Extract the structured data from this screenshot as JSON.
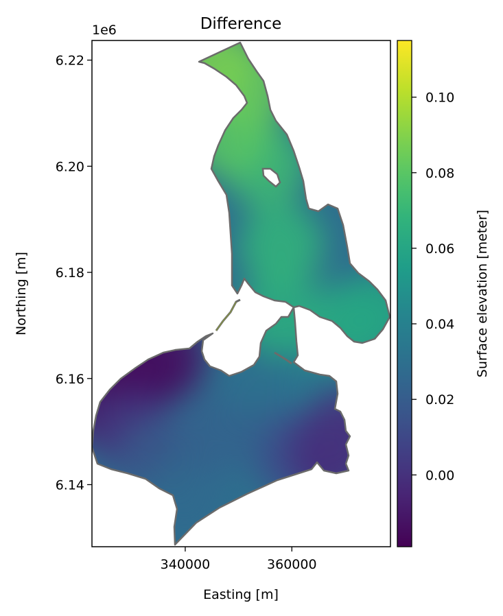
{
  "chart_data": {
    "type": "heatmap",
    "title": "Difference",
    "xlabel": "Easting [m]",
    "ylabel": "Northing [m]",
    "y_offset_label": "1e6",
    "xlim": [
      322500,
      378500
    ],
    "ylim": [
      6.1283,
      6.2237
    ],
    "x_ticks": [
      340000,
      360000
    ],
    "x_tick_labels": [
      "340000",
      "360000"
    ],
    "y_ticks": [
      6.14,
      6.16,
      6.18,
      6.2,
      6.22
    ],
    "y_tick_labels": [
      "6.14",
      "6.16",
      "6.18",
      "6.20",
      "6.22"
    ],
    "colorbar": {
      "label": "Surface elevation [meter]",
      "colormap": "viridis",
      "range": [
        -0.019,
        0.115
      ],
      "ticks": [
        0.0,
        0.02,
        0.04,
        0.06,
        0.08,
        0.1
      ],
      "tick_labels": [
        "0.00",
        "0.02",
        "0.04",
        "0.06",
        "0.08",
        "0.10"
      ]
    },
    "field_samples": [
      {
        "x": 325000,
        "y": 6.155,
        "value": -0.013
      },
      {
        "x": 331000,
        "y": 6.161,
        "value": -0.016
      },
      {
        "x": 336000,
        "y": 6.164,
        "value": -0.014
      },
      {
        "x": 330000,
        "y": 6.15,
        "value": 0.003
      },
      {
        "x": 335000,
        "y": 6.145,
        "value": 0.018
      },
      {
        "x": 340000,
        "y": 6.137,
        "value": 0.027
      },
      {
        "x": 345000,
        "y": 6.15,
        "value": 0.022
      },
      {
        "x": 352000,
        "y": 6.155,
        "value": 0.024
      },
      {
        "x": 358000,
        "y": 6.148,
        "value": 0.023
      },
      {
        "x": 362000,
        "y": 6.145,
        "value": 0.011
      },
      {
        "x": 368000,
        "y": 6.146,
        "value": -0.004
      },
      {
        "x": 370000,
        "y": 6.15,
        "value": 0.001
      },
      {
        "x": 360000,
        "y": 6.163,
        "value": 0.035
      },
      {
        "x": 352000,
        "y": 6.162,
        "value": 0.03
      },
      {
        "x": 358000,
        "y": 6.172,
        "value": 0.065
      },
      {
        "x": 370000,
        "y": 6.17,
        "value": 0.063
      },
      {
        "x": 376000,
        "y": 6.172,
        "value": 0.06
      },
      {
        "x": 358000,
        "y": 6.185,
        "value": 0.069
      },
      {
        "x": 355000,
        "y": 6.2,
        "value": 0.073
      },
      {
        "x": 348000,
        "y": 6.206,
        "value": 0.08
      },
      {
        "x": 352000,
        "y": 6.215,
        "value": 0.084
      },
      {
        "x": 345000,
        "y": 6.22,
        "value": 0.088
      }
    ]
  }
}
